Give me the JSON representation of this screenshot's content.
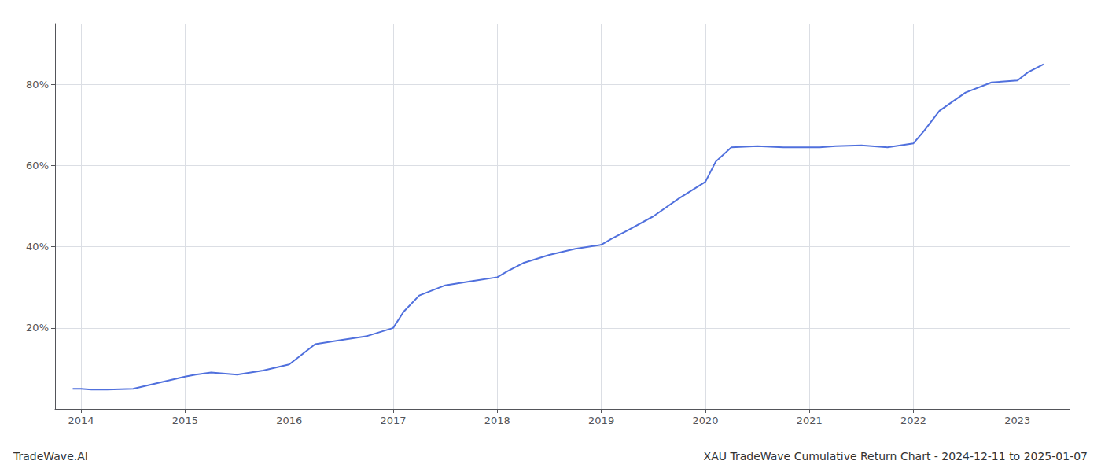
{
  "chart_data": {
    "type": "line",
    "title": "XAU TradeWave Cumulative Return Chart - 2024-12-11 to 2025-01-07",
    "annotations": [
      "TradeWave.AI"
    ],
    "x": [
      2013.92,
      2014.0,
      2014.1,
      2014.25,
      2014.5,
      2014.75,
      2015.0,
      2015.1,
      2015.25,
      2015.5,
      2015.75,
      2016.0,
      2016.1,
      2016.25,
      2016.5,
      2016.75,
      2017.0,
      2017.1,
      2017.25,
      2017.5,
      2017.75,
      2018.0,
      2018.1,
      2018.25,
      2018.5,
      2018.75,
      2019.0,
      2019.1,
      2019.25,
      2019.5,
      2019.75,
      2020.0,
      2020.1,
      2020.25,
      2020.5,
      2020.75,
      2021.0,
      2021.1,
      2021.25,
      2021.5,
      2021.75,
      2022.0,
      2022.1,
      2022.25,
      2022.5,
      2022.75,
      2023.0,
      2023.1,
      2023.25
    ],
    "values": [
      5.0,
      5.0,
      4.8,
      4.8,
      5.0,
      6.5,
      8.0,
      8.5,
      9.0,
      8.5,
      9.5,
      11.0,
      13.0,
      16.0,
      17.0,
      18.0,
      20.0,
      24.0,
      28.0,
      30.5,
      31.5,
      32.5,
      34.0,
      36.0,
      38.0,
      39.5,
      40.5,
      42.0,
      44.0,
      47.5,
      52.0,
      56.0,
      61.0,
      64.5,
      64.8,
      64.5,
      64.5,
      64.5,
      64.8,
      65.0,
      64.5,
      65.5,
      68.5,
      73.5,
      78.0,
      80.5,
      81.0,
      83.0,
      85.0
    ],
    "xlim": [
      2013.75,
      2023.5
    ],
    "xticks": [
      2014,
      2015,
      2016,
      2017,
      2018,
      2019,
      2020,
      2021,
      2022,
      2023
    ],
    "ylim": [
      0,
      95
    ],
    "yticks": [
      {
        "value": 20,
        "label": "20%"
      },
      {
        "value": 40,
        "label": "40%"
      },
      {
        "value": 60,
        "label": "60%"
      },
      {
        "value": 80,
        "label": "80%"
      }
    ],
    "grid": true
  }
}
